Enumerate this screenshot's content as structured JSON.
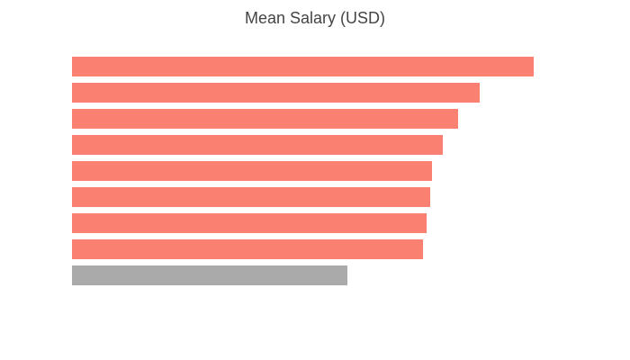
{
  "chart_data": {
    "type": "barh",
    "title": "Mean Salary (USD)",
    "categories": [
      null,
      null,
      null,
      null,
      null,
      null,
      null,
      null,
      null
    ],
    "values": [
      513,
      453,
      429,
      412,
      400,
      398,
      394,
      390,
      306
    ],
    "colors": [
      "#fa8072",
      "#fa8072",
      "#fa8072",
      "#fa8072",
      "#fa8072",
      "#fa8072",
      "#fa8072",
      "#fa8072",
      "#aaaaaa"
    ],
    "xlim": [
      0,
      513
    ]
  }
}
